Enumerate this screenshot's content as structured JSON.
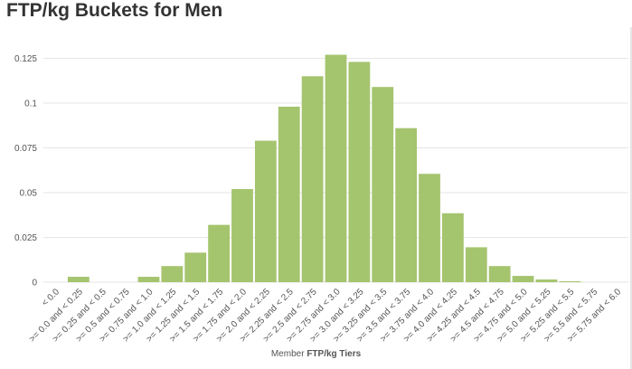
{
  "title": "FTP/kg Buckets for Men",
  "chart_data": {
    "type": "bar",
    "title": "FTP/kg Buckets for Men",
    "xlabel_prefix": "Member",
    "xlabel_strong": "FTP/kg Tiers",
    "ylabel": "",
    "ylim": [
      0,
      0.125
    ],
    "yticks": [
      0,
      0.025,
      0.05,
      0.075,
      0.1,
      0.125
    ],
    "ytick_labels": [
      "0",
      "0.025",
      "0.05",
      "0.075",
      "0.1",
      "0.125"
    ],
    "grid": true,
    "bar_color": "#a5c46e",
    "categories": [
      "< 0.0",
      ">= 0.0 and < 0.25",
      ">= 0.25 and < 0.5",
      ">= 0.5 and < 0.75",
      ">= 0.75 and < 1.0",
      ">= 1.0 and < 1.25",
      ">= 1.25 and < 1.5",
      ">= 1.5 and < 1.75",
      ">= 1.75 and < 2.0",
      ">= 2.0 and < 2.25",
      ">= 2.25 and < 2.5",
      ">= 2.5 and < 2.75",
      ">= 2.75 and < 3.0",
      ">= 3.0 and < 3.25",
      ">= 3.25 and < 3.5",
      ">= 3.5 and < 3.75",
      ">= 3.75 and < 4.0",
      ">= 4.0 and < 4.25",
      ">= 4.25 and < 4.5",
      ">= 4.5 and < 4.75",
      ">= 4.75 and < 5.0",
      ">= 5.0 and < 5.25",
      ">= 5.25 and < 5.5",
      ">= 5.5 and < 5.75",
      ">= 5.75 and < 6.0"
    ],
    "values": [
      0,
      0.003,
      0,
      0,
      0.003,
      0.009,
      0.0165,
      0.032,
      0.052,
      0.079,
      0.098,
      0.115,
      0.127,
      0.123,
      0.109,
      0.086,
      0.0605,
      0.0385,
      0.0195,
      0.009,
      0.0035,
      0.0015,
      0.0005,
      0,
      0
    ]
  }
}
